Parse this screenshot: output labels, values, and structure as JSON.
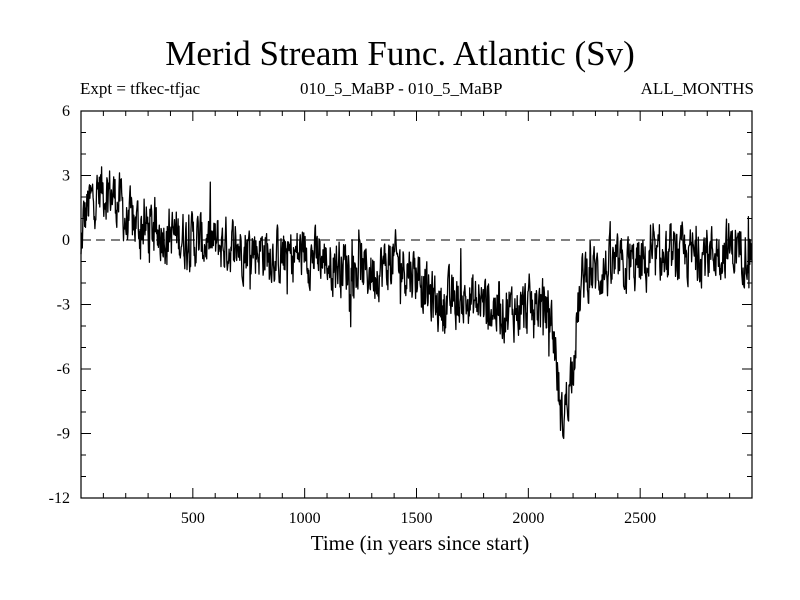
{
  "chart_data": {
    "type": "line",
    "title": "Merid Stream Func. Atlantic (Sv)",
    "subtitle_left": "Expt = tfkec-tfjac",
    "subtitle_center": "010_5_MaBP - 010_5_MaBP",
    "subtitle_right": "ALL_MONTHS",
    "xlabel": "Time (in years since start)",
    "ylabel": "",
    "xlim": [
      0,
      3000
    ],
    "ylim": [
      -12,
      6
    ],
    "xticks": [
      500,
      1000,
      1500,
      2000,
      2500
    ],
    "yticks": [
      6,
      3,
      0,
      -3,
      -6,
      -9,
      -12
    ],
    "reference_line": {
      "y": 0,
      "style": "dashed"
    },
    "grid": false,
    "legend": "none",
    "series_color": "#000000",
    "series": [
      {
        "x": [
          0,
          10,
          30,
          60,
          90,
          120,
          150,
          180,
          200,
          250,
          300,
          400,
          500,
          600,
          700,
          800,
          900,
          1000,
          1100,
          1200,
          1300,
          1400,
          1500,
          1550,
          1600,
          1700,
          1800,
          1900,
          2000,
          2050,
          2100,
          2120,
          2140,
          2150,
          2160,
          2180,
          2200,
          2220,
          2250,
          2300,
          2400,
          2500,
          2600,
          2700,
          2800,
          2900,
          3000
        ],
        "y": [
          -1.0,
          0.8,
          1.5,
          2.0,
          2.4,
          2.3,
          2.0,
          1.7,
          0.8,
          0.8,
          0.5,
          0.3,
          0.0,
          -0.2,
          -0.3,
          -0.4,
          -0.8,
          -0.6,
          -1.0,
          -1.2,
          -1.5,
          -1.0,
          -1.5,
          -2.5,
          -3.0,
          -2.8,
          -3.0,
          -3.3,
          -3.2,
          -3.0,
          -3.5,
          -5.0,
          -7.5,
          -8.5,
          -8.0,
          -7.0,
          -5.5,
          -3.5,
          -1.5,
          -1.5,
          -1.3,
          -1.2,
          -1.0,
          -0.8,
          -0.6,
          -0.4,
          -0.5
        ]
      }
    ]
  }
}
